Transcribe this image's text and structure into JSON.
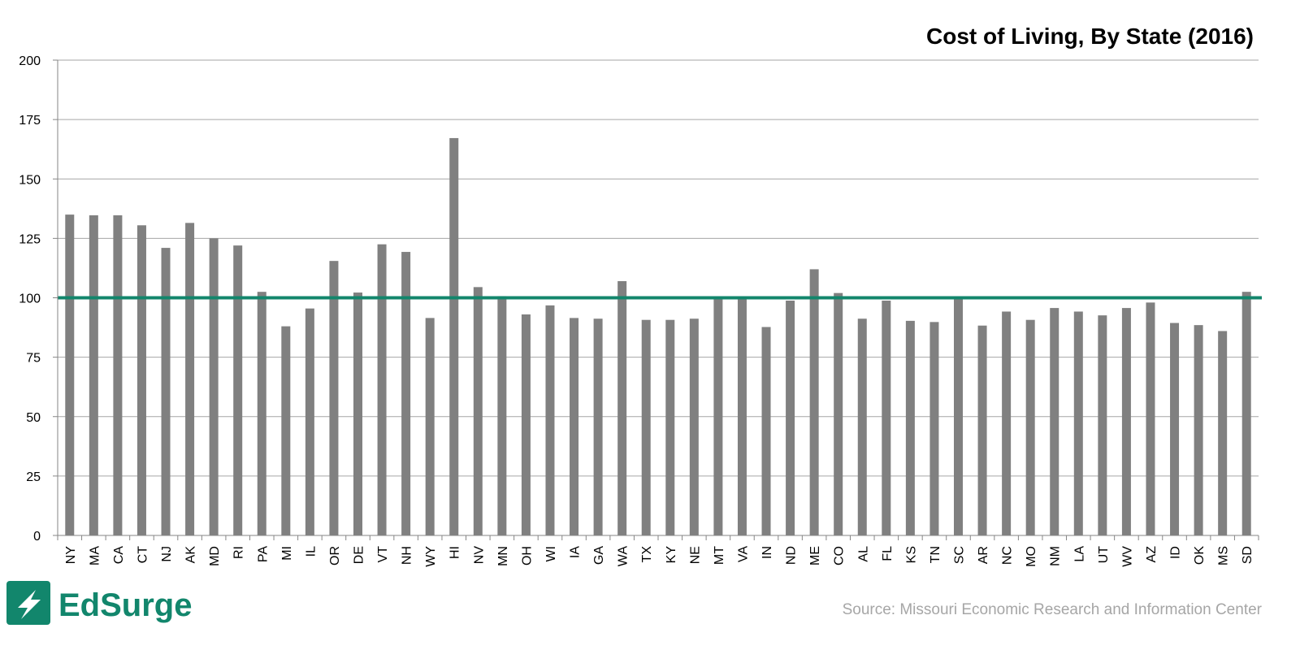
{
  "chart_data": {
    "type": "bar",
    "title": "Cost of Living, By State (2016)",
    "xlabel": "",
    "ylabel": "",
    "ylim": [
      0,
      200
    ],
    "yticks": [
      0,
      25,
      50,
      75,
      100,
      125,
      150,
      175,
      200
    ],
    "grid": true,
    "reference_line": {
      "value": 100,
      "color": "#12866c"
    },
    "bar_color": "#808080",
    "categories": [
      "NY",
      "MA",
      "CA",
      "CT",
      "NJ",
      "AK",
      "MD",
      "RI",
      "PA",
      "MI",
      "IL",
      "OR",
      "DE",
      "VT",
      "NH",
      "WY",
      "HI",
      "NV",
      "MN",
      "OH",
      "WI",
      "IA",
      "GA",
      "WA",
      "TX",
      "KY",
      "NE",
      "MT",
      "VA",
      "IN",
      "ND",
      "ME",
      "CO",
      "AL",
      "FL",
      "KS",
      "TN",
      "SC",
      "AR",
      "NC",
      "MO",
      "NM",
      "LA",
      "UT",
      "WV",
      "AZ",
      "ID",
      "OK",
      "MS",
      "SD"
    ],
    "values": [
      135,
      134.7,
      134.7,
      130.5,
      121,
      131.5,
      125,
      122,
      102.5,
      88,
      95.5,
      115.5,
      102.2,
      122.5,
      119.3,
      91.5,
      167.2,
      104.5,
      100.7,
      93,
      96.8,
      91.5,
      91.2,
      107,
      90.7,
      90.7,
      91.2,
      100,
      100,
      87.7,
      98.8,
      112,
      102,
      91.2,
      98.8,
      90.3,
      89.8,
      100,
      88.3,
      94.2,
      90.7,
      95.7,
      94.2,
      92.6,
      95.7,
      98,
      89.4,
      88.5,
      86,
      102.5
    ]
  },
  "footer": {
    "brand": "EdSurge",
    "brand_color": "#12866c",
    "logo_icon": "lightning-bolt-icon",
    "source": "Source: Missouri Economic Research and Information Center"
  }
}
